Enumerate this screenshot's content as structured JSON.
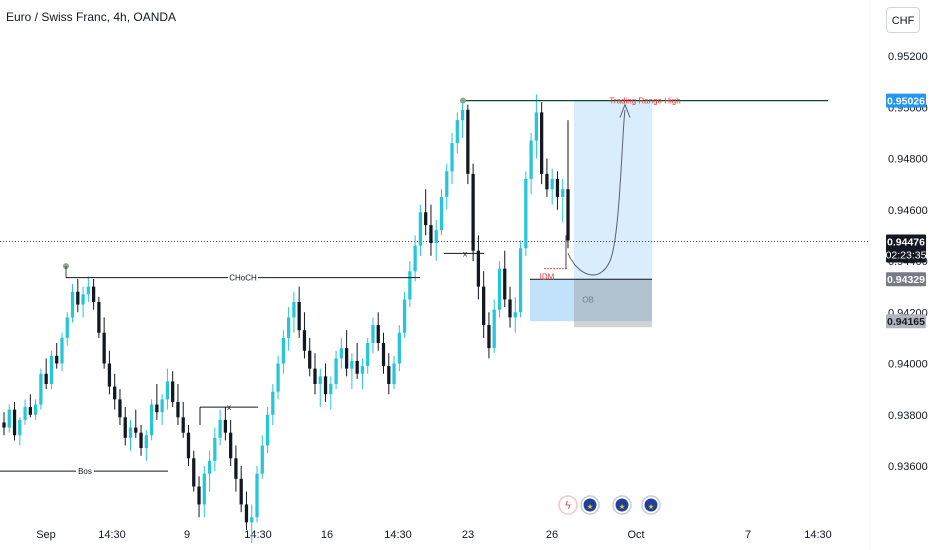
{
  "header": {
    "title": "Euro / Swiss Franc, 4h, OANDA",
    "currency": "CHF"
  },
  "chart_data": {
    "type": "candlestick",
    "y_ticks": [
      "0.95200",
      "0.95000",
      "0.94800",
      "0.94600",
      "0.94400",
      "0.94200",
      "0.94000",
      "0.93800",
      "0.93600"
    ],
    "y_tick_values": [
      0.952,
      0.95,
      0.948,
      0.946,
      0.944,
      0.942,
      0.94,
      0.938,
      0.936
    ],
    "x_ticks": [
      "Sep",
      "14:30",
      "9",
      "14:30",
      "16",
      "14:30",
      "23",
      "26",
      "Oct",
      "7",
      "14:30"
    ],
    "ylim": [
      0.9347,
      0.9531
    ],
    "price_tags": [
      {
        "label": "0.95026",
        "value": 0.95026,
        "bg": "#2196f3",
        "fg": "#ffffff"
      },
      {
        "label": "0.94476",
        "sub": "02:23:35",
        "value": 0.94476,
        "bg": "#131722",
        "fg": "#ffffff"
      },
      {
        "label": "0.94329",
        "value": 0.94329,
        "bg": "#787b86",
        "fg": "#ffffff"
      },
      {
        "label": "0.94165",
        "value": 0.94165,
        "bg": "#b2b5be",
        "fg": "#131722"
      }
    ],
    "annotations": {
      "trading_range_high": "Trading Range High",
      "choch": "CHoCH",
      "bos": "Bos",
      "idm": "IDM",
      "ob": "OB",
      "x_mark": "x"
    },
    "levels": {
      "range_high": 0.95026,
      "choch": 0.94335,
      "bos": 0.9358,
      "ob_top": 0.94329,
      "ob_bottom": 0.94165,
      "x_mark_1": 0.9383,
      "x_mark_2": 0.9443,
      "current": 0.94476
    },
    "candles_ohlc_summary": "approx. 4h candles from early Sep to late Sep",
    "candles": [
      [
        0.9377,
        0.9381,
        0.9372,
        0.9375
      ],
      [
        0.9375,
        0.9384,
        0.9373,
        0.9382
      ],
      [
        0.9382,
        0.9385,
        0.937,
        0.9372
      ],
      [
        0.9372,
        0.9379,
        0.9368,
        0.9378
      ],
      [
        0.9378,
        0.9386,
        0.9376,
        0.9383
      ],
      [
        0.9383,
        0.9388,
        0.9379,
        0.938
      ],
      [
        0.938,
        0.9386,
        0.9378,
        0.9384
      ],
      [
        0.9384,
        0.9398,
        0.9382,
        0.9396
      ],
      [
        0.9396,
        0.9402,
        0.939,
        0.9392
      ],
      [
        0.9392,
        0.9405,
        0.939,
        0.9403
      ],
      [
        0.9403,
        0.9408,
        0.9398,
        0.94
      ],
      [
        0.94,
        0.9412,
        0.9397,
        0.941
      ],
      [
        0.941,
        0.942,
        0.9407,
        0.9418
      ],
      [
        0.9418,
        0.9431,
        0.9416,
        0.9428
      ],
      [
        0.9428,
        0.9433,
        0.942,
        0.9423
      ],
      [
        0.9423,
        0.943,
        0.9418,
        0.9427
      ],
      [
        0.9427,
        0.9434,
        0.9424,
        0.943
      ],
      [
        0.943,
        0.9433,
        0.9421,
        0.9424
      ],
      [
        0.9424,
        0.9426,
        0.941,
        0.9412
      ],
      [
        0.9412,
        0.9418,
        0.9398,
        0.94
      ],
      [
        0.94,
        0.9405,
        0.9388,
        0.9391
      ],
      [
        0.9391,
        0.9396,
        0.9382,
        0.9386
      ],
      [
        0.9386,
        0.939,
        0.9376,
        0.9379
      ],
      [
        0.9379,
        0.9383,
        0.9368,
        0.9371
      ],
      [
        0.9371,
        0.9378,
        0.9366,
        0.9375
      ],
      [
        0.9375,
        0.9382,
        0.9371,
        0.9373
      ],
      [
        0.9373,
        0.9376,
        0.9364,
        0.9367
      ],
      [
        0.9367,
        0.9374,
        0.9362,
        0.9372
      ],
      [
        0.9372,
        0.9386,
        0.937,
        0.9384
      ],
      [
        0.9384,
        0.9392,
        0.9378,
        0.9381
      ],
      [
        0.9381,
        0.9388,
        0.9376,
        0.9386
      ],
      [
        0.9386,
        0.9398,
        0.9382,
        0.9393
      ],
      [
        0.9393,
        0.9397,
        0.9383,
        0.9385
      ],
      [
        0.9385,
        0.9392,
        0.9376,
        0.9379
      ],
      [
        0.9379,
        0.9385,
        0.9371,
        0.9373
      ],
      [
        0.9373,
        0.9376,
        0.936,
        0.9363
      ],
      [
        0.9363,
        0.9366,
        0.935,
        0.9352
      ],
      [
        0.9352,
        0.9356,
        0.934,
        0.9345
      ],
      [
        0.9345,
        0.936,
        0.934,
        0.9357
      ],
      [
        0.9357,
        0.9366,
        0.935,
        0.9362
      ],
      [
        0.9362,
        0.9375,
        0.9358,
        0.9371
      ],
      [
        0.9371,
        0.9382,
        0.9368,
        0.9378
      ],
      [
        0.9378,
        0.9383,
        0.937,
        0.9373
      ],
      [
        0.9373,
        0.9378,
        0.936,
        0.9363
      ],
      [
        0.9363,
        0.9368,
        0.935,
        0.9355
      ],
      [
        0.9355,
        0.936,
        0.9342,
        0.9345
      ],
      [
        0.9345,
        0.935,
        0.9335,
        0.9338
      ],
      [
        0.9338,
        0.9345,
        0.933,
        0.934
      ],
      [
        0.934,
        0.936,
        0.9338,
        0.9357
      ],
      [
        0.9357,
        0.9372,
        0.9355,
        0.9368
      ],
      [
        0.9368,
        0.9383,
        0.9365,
        0.938
      ],
      [
        0.938,
        0.9392,
        0.9376,
        0.9389
      ],
      [
        0.9389,
        0.9403,
        0.9386,
        0.94
      ],
      [
        0.94,
        0.9413,
        0.9396,
        0.941
      ],
      [
        0.941,
        0.9422,
        0.9405,
        0.9418
      ],
      [
        0.9418,
        0.9428,
        0.9412,
        0.9424
      ],
      [
        0.9424,
        0.943,
        0.941,
        0.9413
      ],
      [
        0.9413,
        0.942,
        0.9402,
        0.9405
      ],
      [
        0.9405,
        0.941,
        0.9395,
        0.9398
      ],
      [
        0.9398,
        0.9404,
        0.9388,
        0.9392
      ],
      [
        0.9392,
        0.9398,
        0.9383,
        0.9395
      ],
      [
        0.9395,
        0.94,
        0.9385,
        0.9388
      ],
      [
        0.9388,
        0.9395,
        0.9382,
        0.9392
      ],
      [
        0.9392,
        0.9405,
        0.939,
        0.9402
      ],
      [
        0.9402,
        0.941,
        0.9398,
        0.9406
      ],
      [
        0.9406,
        0.9413,
        0.9395,
        0.9398
      ],
      [
        0.9398,
        0.9404,
        0.939,
        0.9401
      ],
      [
        0.9401,
        0.9408,
        0.9394,
        0.9396
      ],
      [
        0.9396,
        0.9402,
        0.939,
        0.9399
      ],
      [
        0.9399,
        0.941,
        0.9396,
        0.9408
      ],
      [
        0.9408,
        0.9418,
        0.9404,
        0.9415
      ],
      [
        0.9415,
        0.942,
        0.9405,
        0.9408
      ],
      [
        0.9408,
        0.9412,
        0.9396,
        0.9399
      ],
      [
        0.9399,
        0.9404,
        0.9388,
        0.9392
      ],
      [
        0.9392,
        0.9403,
        0.939,
        0.94
      ],
      [
        0.94,
        0.9415,
        0.9397,
        0.9412
      ],
      [
        0.9412,
        0.9428,
        0.941,
        0.9425
      ],
      [
        0.9425,
        0.944,
        0.9422,
        0.9436
      ],
      [
        0.9436,
        0.945,
        0.9432,
        0.9446
      ],
      [
        0.9446,
        0.9462,
        0.9442,
        0.9459
      ],
      [
        0.9459,
        0.9468,
        0.945,
        0.9454
      ],
      [
        0.9454,
        0.9462,
        0.9442,
        0.9447
      ],
      [
        0.9447,
        0.9456,
        0.944,
        0.9452
      ],
      [
        0.9452,
        0.9468,
        0.945,
        0.9465
      ],
      [
        0.9465,
        0.9478,
        0.946,
        0.9475
      ],
      [
        0.9475,
        0.949,
        0.947,
        0.9486
      ],
      [
        0.9486,
        0.9498,
        0.9482,
        0.9495
      ],
      [
        0.9495,
        0.9502,
        0.9488,
        0.9499
      ],
      [
        0.9499,
        0.9501,
        0.947,
        0.9474
      ],
      [
        0.9474,
        0.9478,
        0.944,
        0.9444
      ],
      [
        0.9444,
        0.945,
        0.9425,
        0.943
      ],
      [
        0.943,
        0.9436,
        0.941,
        0.9415
      ],
      [
        0.9415,
        0.942,
        0.9402,
        0.9406
      ],
      [
        0.9406,
        0.9425,
        0.9404,
        0.9421
      ],
      [
        0.9421,
        0.944,
        0.9418,
        0.9437
      ],
      [
        0.9437,
        0.9444,
        0.9422,
        0.9425
      ],
      [
        0.9425,
        0.943,
        0.9414,
        0.9418
      ],
      [
        0.9418,
        0.9426,
        0.9412,
        0.942
      ],
      [
        0.942,
        0.9448,
        0.9418,
        0.9445
      ],
      [
        0.9445,
        0.9475,
        0.9442,
        0.9472
      ],
      [
        0.9472,
        0.949,
        0.9466,
        0.9487
      ],
      [
        0.9487,
        0.9505,
        0.948,
        0.9498
      ],
      [
        0.9498,
        0.9502,
        0.947,
        0.9474
      ],
      [
        0.9474,
        0.948,
        0.9465,
        0.9468
      ],
      [
        0.9468,
        0.9476,
        0.9462,
        0.9472
      ],
      [
        0.9472,
        0.9475,
        0.946,
        0.9465
      ],
      [
        0.9465,
        0.9472,
        0.9455,
        0.9468
      ],
      [
        0.9468,
        0.9495,
        0.9445,
        0.9448
      ]
    ]
  },
  "events": [
    {
      "name": "flash-event-icon",
      "glyph": "ϟ",
      "color": "#e8474d"
    },
    {
      "name": "eu-flag-icon",
      "glyph": "★",
      "color": "#1e3f9e"
    },
    {
      "name": "eu-flag-icon",
      "glyph": "★",
      "color": "#1e3f9e"
    },
    {
      "name": "eu-flag-icon",
      "glyph": "★",
      "color": "#1e3f9e"
    }
  ],
  "colors": {
    "up": "#26c6da",
    "down": "#131722",
    "range_line": "#0b4a2a",
    "range_box": "#bbdefb",
    "ob_box": "#9e9e9e",
    "idm_text": "#e53935",
    "trading_range_text": "#e53935"
  }
}
